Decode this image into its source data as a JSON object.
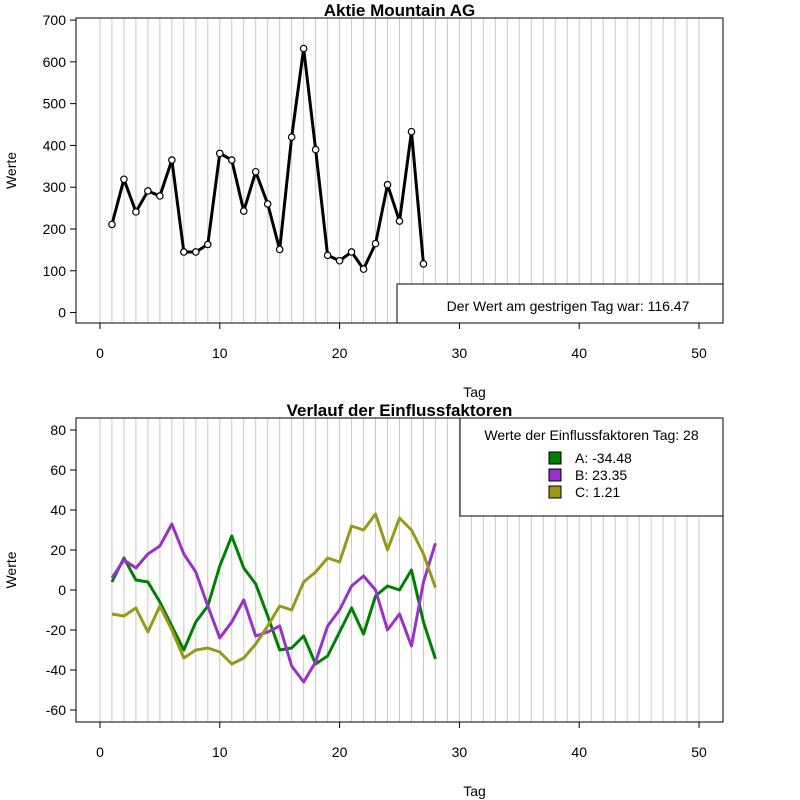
{
  "chart_data": [
    {
      "type": "line",
      "title": "Aktie  Mountain AG",
      "xlabel": "Tag",
      "ylabel": "Werte",
      "xlim": [
        -2,
        52
      ],
      "ylim": [
        -25,
        705
      ],
      "xticks": [
        0,
        10,
        20,
        30,
        40,
        50
      ],
      "yticks": [
        0,
        100,
        200,
        300,
        400,
        500,
        600,
        700
      ],
      "vgrid": [
        0,
        1,
        2,
        3,
        4,
        5,
        6,
        7,
        8,
        9,
        10,
        11,
        12,
        13,
        14,
        15,
        16,
        17,
        18,
        19,
        20,
        21,
        22,
        23,
        24,
        25,
        26,
        27,
        28,
        29,
        30,
        31,
        32,
        33,
        34,
        35,
        36,
        37,
        38,
        39,
        40,
        41,
        42,
        43,
        44,
        45,
        46,
        47,
        48,
        49,
        50
      ],
      "legend_position": "bottom-right",
      "legend_text": "Der Wert am gestrigen Tag war: 116.47",
      "series": [
        {
          "color": "#000000",
          "x": [
            1,
            2,
            3,
            4,
            5,
            6,
            7,
            8,
            9,
            10,
            11,
            12,
            13,
            14,
            15,
            16,
            17,
            18,
            19,
            20,
            21,
            22,
            23,
            24,
            25,
            26,
            27
          ],
          "y": [
            211,
            319,
            241,
            291,
            279,
            365,
            145,
            145,
            163,
            381,
            365,
            243,
            337,
            260,
            151,
            420,
            632,
            390,
            137,
            124,
            145,
            104,
            165,
            306,
            219,
            433,
            116.47
          ]
        }
      ]
    },
    {
      "type": "line",
      "title": "Verlauf der Einflussfaktoren",
      "xlabel": "Tag",
      "ylabel": "Werte",
      "xlim": [
        -2,
        52
      ],
      "ylim": [
        -66,
        86
      ],
      "xticks": [
        0,
        10,
        20,
        30,
        40,
        50
      ],
      "yticks": [
        -60,
        -40,
        -20,
        0,
        20,
        40,
        60,
        80
      ],
      "vgrid": [
        0,
        1,
        2,
        3,
        4,
        5,
        6,
        7,
        8,
        9,
        10,
        11,
        12,
        13,
        14,
        15,
        16,
        17,
        18,
        19,
        20,
        21,
        22,
        23,
        24,
        25,
        26,
        27,
        28,
        29,
        30,
        31,
        32,
        33,
        34,
        35,
        36,
        37,
        38,
        39,
        40,
        41,
        42,
        43,
        44,
        45,
        46,
        47,
        48,
        49,
        50
      ],
      "legend_position": "top-right",
      "legend_title": "Werte der Einflussfaktoren Tag: 28",
      "series": [
        {
          "name": "A: -34.48",
          "color": "#008000",
          "x": [
            1,
            2,
            3,
            4,
            5,
            6,
            7,
            8,
            9,
            10,
            11,
            12,
            13,
            14,
            15,
            16,
            17,
            18,
            19,
            20,
            21,
            22,
            23,
            24,
            25,
            26,
            27,
            28
          ],
          "y": [
            4,
            16,
            5,
            4,
            -6,
            -18,
            -30,
            -16,
            -8,
            12,
            27,
            11,
            3,
            -13,
            -30,
            -29,
            -23,
            -37,
            -33,
            -21,
            -9,
            -22,
            -3,
            2,
            0,
            10,
            -16,
            -34.48
          ]
        },
        {
          "name": "B: 23.35",
          "color": "#9932CC",
          "x": [
            1,
            2,
            3,
            4,
            5,
            6,
            7,
            8,
            9,
            10,
            11,
            12,
            13,
            14,
            15,
            16,
            17,
            18,
            19,
            20,
            21,
            22,
            23,
            24,
            25,
            26,
            27,
            28
          ],
          "y": [
            6,
            15,
            11,
            18,
            22,
            33,
            18,
            9,
            -8,
            -24,
            -16,
            -5,
            -23,
            -21,
            -18,
            -38,
            -46,
            -36,
            -18,
            -10,
            2,
            7,
            0,
            -20,
            -12,
            -28,
            4,
            23.35
          ]
        },
        {
          "name": "C: 1.21",
          "color": "#999919",
          "x": [
            1,
            2,
            3,
            4,
            5,
            6,
            7,
            8,
            9,
            10,
            11,
            12,
            13,
            14,
            15,
            16,
            17,
            18,
            19,
            20,
            21,
            22,
            23,
            24,
            25,
            26,
            27,
            28
          ],
          "y": [
            -12,
            -13,
            -9,
            -21,
            -8,
            -20,
            -34,
            -30,
            -29,
            -31,
            -37,
            -34,
            -27,
            -18,
            -8,
            -10,
            4,
            9,
            16,
            14,
            32,
            30,
            38,
            20,
            36,
            30,
            18,
            1.21
          ]
        }
      ]
    }
  ]
}
